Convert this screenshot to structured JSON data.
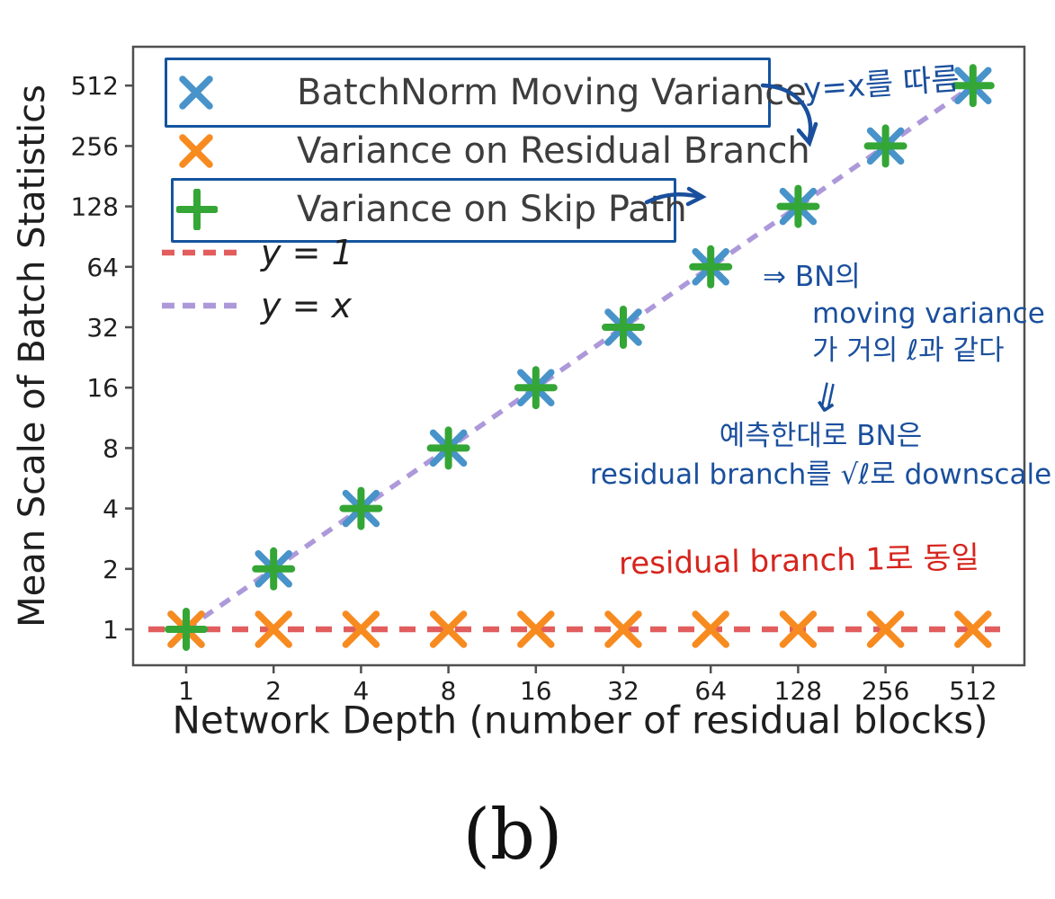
{
  "figure": {
    "caption": "(b)"
  },
  "chart_data": {
    "type": "scatter",
    "xlabel": "Network Depth (number of residual blocks)",
    "ylabel": "Mean Scale of Batch Statistics",
    "x_scale": "log2",
    "y_scale": "log2",
    "x": [
      1,
      2,
      4,
      8,
      16,
      32,
      64,
      128,
      256,
      512
    ],
    "x_ticks": [
      "1",
      "2",
      "4",
      "8",
      "16",
      "32",
      "64",
      "128",
      "256",
      "512"
    ],
    "y_ticks": [
      "1",
      "2",
      "4",
      "8",
      "16",
      "32",
      "64",
      "128",
      "256",
      "512"
    ],
    "grid": false,
    "legend_position": "upper left",
    "series": [
      {
        "name": "BatchNorm Moving Variance",
        "marker": "x",
        "color": "#4893c9",
        "values": [
          1,
          2,
          4,
          8,
          16,
          32,
          64,
          128,
          256,
          512
        ]
      },
      {
        "name": "Variance on Residual Branch",
        "marker": "x",
        "color": "#f78b20",
        "values": [
          1,
          1,
          1,
          1,
          1,
          1,
          1,
          1,
          1,
          1
        ]
      },
      {
        "name": "Variance on Skip Path",
        "marker": "+",
        "color": "#34a636",
        "values": [
          1,
          2,
          4,
          8,
          16,
          32,
          64,
          128,
          256,
          512
        ]
      }
    ],
    "ref_lines": [
      {
        "label": "y = 1",
        "type": "hline",
        "y": 1,
        "color": "#e25d5d",
        "style": "dashed"
      },
      {
        "label": "y = x",
        "type": "identity",
        "color": "#ad99da",
        "style": "dashed"
      }
    ]
  },
  "annotations": {
    "blue_color": "#1a4f9d",
    "red_color": "#d6251d",
    "follow_note": "y=x를 따름",
    "bn_note": {
      "line1": "⇒ BN의",
      "line2": "moving variance",
      "line3": "가 거의 ℓ과 같다"
    },
    "implies_symbol": "⇓",
    "downscale_note": {
      "line1": "예측한대로 BN은",
      "line2": "residual branch를 √ℓ로 downscale"
    },
    "residual_note": "residual branch 1로 동일"
  }
}
